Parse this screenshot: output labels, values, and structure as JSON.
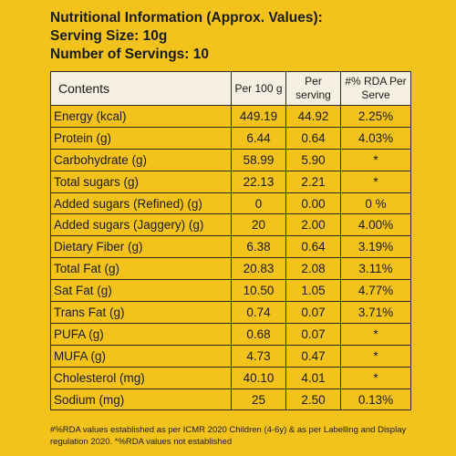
{
  "header": {
    "title": "Nutritional Information (Approx. Values):",
    "serving_size": "Serving Size: 10g",
    "servings": "Number of Servings: 10"
  },
  "table": {
    "columns": [
      "Contents",
      "Per 100 g",
      "Per serving",
      "#% RDA Per Serve"
    ],
    "rows": [
      {
        "name": "Energy (kcal)",
        "per100": "449.19",
        "serving": "44.92",
        "rda": "2.25%"
      },
      {
        "name": "Protein (g)",
        "per100": "6.44",
        "serving": "0.64",
        "rda": "4.03%"
      },
      {
        "name": "Carbohydrate (g)",
        "per100": "58.99",
        "serving": "5.90",
        "rda": "*"
      },
      {
        "name": "Total sugars (g)",
        "per100": "22.13",
        "serving": "2.21",
        "rda": "*"
      },
      {
        "name": "Added sugars (Refined) (g)",
        "per100": "0",
        "serving": "0.00",
        "rda": "0 %"
      },
      {
        "name": "Added sugars (Jaggery) (g)",
        "per100": "20",
        "serving": "2.00",
        "rda": "4.00%"
      },
      {
        "name": "Dietary Fiber (g)",
        "per100": "6.38",
        "serving": "0.64",
        "rda": "3.19%"
      },
      {
        "name": "Total Fat (g)",
        "per100": "20.83",
        "serving": "2.08",
        "rda": "3.11%"
      },
      {
        "name": "Sat Fat (g)",
        "per100": "10.50",
        "serving": "1.05",
        "rda": "4.77%"
      },
      {
        "name": "Trans Fat (g)",
        "per100": "0.74",
        "serving": "0.07",
        "rda": "3.71%"
      },
      {
        "name": "PUFA (g)",
        "per100": "0.68",
        "serving": "0.07",
        "rda": "*"
      },
      {
        "name": "MUFA (g)",
        "per100": "4.73",
        "serving": "0.47",
        "rda": "*"
      },
      {
        "name": "Cholesterol (mg)",
        "per100": "40.10",
        "serving": "4.01",
        "rda": "*"
      },
      {
        "name": "Sodium (mg)",
        "per100": "25",
        "serving": "2.50",
        "rda": "0.13%"
      }
    ]
  },
  "footnote": "#%RDA values established as per ICMR 2020 Children (4-6y) & as per Labelling and Display regulation 2020. *%RDA values not established",
  "colors": {
    "background": "#f3c21b",
    "header_cell": "#f5f0e1",
    "text": "#1a1a1a"
  }
}
